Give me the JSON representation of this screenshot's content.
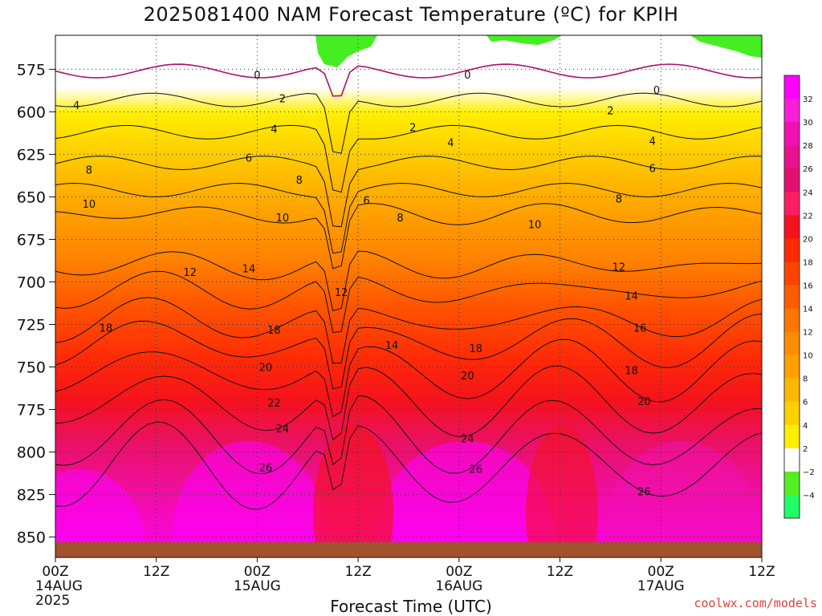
{
  "chart_data": {
    "type": "contour",
    "title": "2025081400 NAM Forecast Temperature (ºC) for KPIH",
    "xlabel": "Forecast Time (UTC)",
    "ylabel": "",
    "y_axis": {
      "inverted": true,
      "ticks": [
        575,
        600,
        625,
        650,
        675,
        700,
        725,
        750,
        775,
        800,
        825,
        850
      ],
      "range": [
        555,
        862
      ]
    },
    "x_axis": {
      "range_hours": [
        0,
        84
      ],
      "ticks": [
        {
          "hour": 0,
          "lines": [
            "00Z",
            "14AUG",
            "2025"
          ]
        },
        {
          "hour": 12,
          "lines": [
            "12Z"
          ]
        },
        {
          "hour": 24,
          "lines": [
            "00Z",
            "15AUG"
          ]
        },
        {
          "hour": 36,
          "lines": [
            "12Z"
          ]
        },
        {
          "hour": 48,
          "lines": [
            "00Z",
            "16AUG"
          ]
        },
        {
          "hour": 60,
          "lines": [
            "12Z"
          ]
        },
        {
          "hour": 72,
          "lines": [
            "00Z",
            "17AUG"
          ]
        },
        {
          "hour": 84,
          "lines": [
            "12Z"
          ]
        }
      ]
    },
    "grid": true,
    "contour_interval": 2,
    "freezing_line_color": "#b0106a",
    "colorbar": {
      "labels": [
        "32",
        "30",
        "28",
        "26",
        "24",
        "22",
        "20",
        "18",
        "16",
        "14",
        "12",
        "10",
        "8",
        "6",
        "4",
        "2",
        "−2",
        "−4"
      ],
      "colors": [
        "#ff00ff",
        "#f91ed8",
        "#f20fb4",
        "#ea1190",
        "#e41070",
        "#ff1e64",
        "#f4121c",
        "#ff2a00",
        "#ff4400",
        "#ff5c00",
        "#ff7600",
        "#ff8c00",
        "#ffa000",
        "#ffb800",
        "#ffd000",
        "#ffee00",
        "#ffffff",
        "#55ee22",
        "#22ff66"
      ]
    },
    "ground_color": "#a0522d",
    "contour_labels": [
      {
        "value": "0",
        "hour": 24.0,
        "p": 578
      },
      {
        "value": "0",
        "hour": 49.0,
        "p": 578
      },
      {
        "value": "0",
        "hour": 71.5,
        "p": 587
      },
      {
        "value": "2",
        "hour": 27.0,
        "p": 592
      },
      {
        "value": "2",
        "hour": 42.5,
        "p": 609
      },
      {
        "value": "2",
        "hour": 66.0,
        "p": 599
      },
      {
        "value": "4",
        "hour": 2.5,
        "p": 596
      },
      {
        "value": "4",
        "hour": 26.0,
        "p": 610
      },
      {
        "value": "4",
        "hour": 47.0,
        "p": 618
      },
      {
        "value": "4",
        "hour": 71.0,
        "p": 617
      },
      {
        "value": "6",
        "hour": 23.0,
        "p": 627
      },
      {
        "value": "6",
        "hour": 37.0,
        "p": 652
      },
      {
        "value": "6",
        "hour": 71.0,
        "p": 633
      },
      {
        "value": "8",
        "hour": 4.0,
        "p": 634
      },
      {
        "value": "8",
        "hour": 29.0,
        "p": 640
      },
      {
        "value": "8",
        "hour": 41.0,
        "p": 662
      },
      {
        "value": "8",
        "hour": 67.0,
        "p": 651
      },
      {
        "value": "10",
        "hour": 4.0,
        "p": 654
      },
      {
        "value": "10",
        "hour": 27.0,
        "p": 662
      },
      {
        "value": "10",
        "hour": 57.0,
        "p": 666
      },
      {
        "value": "12",
        "hour": 16.0,
        "p": 694
      },
      {
        "value": "12",
        "hour": 34.0,
        "p": 706
      },
      {
        "value": "12",
        "hour": 67.0,
        "p": 691
      },
      {
        "value": "14",
        "hour": 23.0,
        "p": 692
      },
      {
        "value": "14",
        "hour": 40.0,
        "p": 737
      },
      {
        "value": "14",
        "hour": 68.5,
        "p": 708
      },
      {
        "value": "16",
        "hour": 69.5,
        "p": 727
      },
      {
        "value": "18",
        "hour": 6.0,
        "p": 727
      },
      {
        "value": "18",
        "hour": 26.0,
        "p": 728
      },
      {
        "value": "18",
        "hour": 50.0,
        "p": 739
      },
      {
        "value": "18",
        "hour": 68.5,
        "p": 752
      },
      {
        "value": "20",
        "hour": 25.0,
        "p": 750
      },
      {
        "value": "20",
        "hour": 49.0,
        "p": 755
      },
      {
        "value": "20",
        "hour": 70.0,
        "p": 770
      },
      {
        "value": "22",
        "hour": 26.0,
        "p": 771
      },
      {
        "value": "24",
        "hour": 27.0,
        "p": 786
      },
      {
        "value": "24",
        "hour": 49.0,
        "p": 792
      },
      {
        "value": "26",
        "hour": 25.0,
        "p": 809
      },
      {
        "value": "26",
        "hour": 50.0,
        "p": 810
      },
      {
        "value": "26",
        "hour": 70.0,
        "p": 823
      }
    ]
  },
  "credit": "coolwx.com/models"
}
